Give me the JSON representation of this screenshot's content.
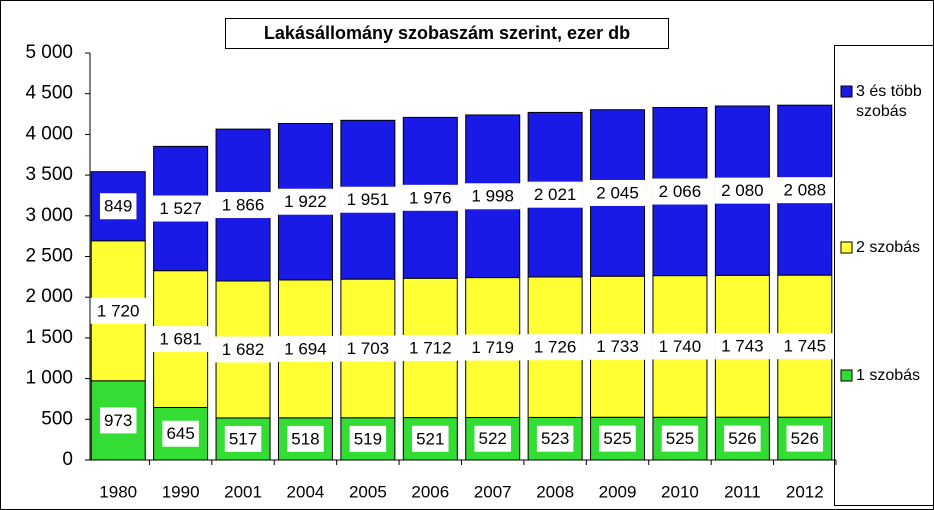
{
  "chart_data": {
    "type": "stacked_bar",
    "title": "Lakásállomány szobaszám szerint, ezer db",
    "categories": [
      "1980",
      "1990",
      "2001",
      "2004",
      "2005",
      "2006",
      "2007",
      "2008",
      "2009",
      "2010",
      "2011",
      "2012"
    ],
    "series": [
      {
        "name": "1 szobás",
        "color": "#33dd33",
        "values": [
          973,
          645,
          517,
          518,
          519,
          521,
          522,
          523,
          525,
          525,
          526,
          526
        ],
        "value_labels": [
          "973",
          "645",
          "517",
          "518",
          "519",
          "521",
          "522",
          "523",
          "525",
          "525",
          "526",
          "526"
        ]
      },
      {
        "name": "2 szobás",
        "color": "#ffff33",
        "values": [
          1720,
          1681,
          1682,
          1694,
          1703,
          1712,
          1719,
          1726,
          1733,
          1740,
          1743,
          1745
        ],
        "value_labels": [
          "1 720",
          "1 681",
          "1 682",
          "1 694",
          "1 703",
          "1 712",
          "1 719",
          "1 726",
          "1 733",
          "1 740",
          "1 743",
          "1 745"
        ]
      },
      {
        "name": "3 és több szobás",
        "color": "#1a1ae6",
        "values": [
          849,
          1527,
          1866,
          1922,
          1951,
          1976,
          1998,
          2021,
          2045,
          2066,
          2080,
          2088
        ],
        "value_labels": [
          "849",
          "1 527",
          "1 866",
          "1 922",
          "1 951",
          "1 976",
          "1 998",
          "2 021",
          "2 045",
          "2 066",
          "2 080",
          "2 088"
        ]
      }
    ],
    "ylim": [
      0,
      5000
    ],
    "yticks": [
      0,
      500,
      {
        "value": 1000,
        "label": "1 000"
      },
      {
        "value": 1500,
        "label": "1 500"
      },
      {
        "value": 2000,
        "label": "2 000"
      },
      {
        "value": 2500,
        "label": "2 500"
      },
      {
        "value": 3000,
        "label": "3 000"
      },
      {
        "value": 3500,
        "label": "3 500"
      },
      {
        "value": 4000,
        "label": "4 000"
      },
      {
        "value": 4500,
        "label": "4 500"
      },
      {
        "value": 5000,
        "label": "5 000"
      }
    ],
    "legend": "right"
  }
}
